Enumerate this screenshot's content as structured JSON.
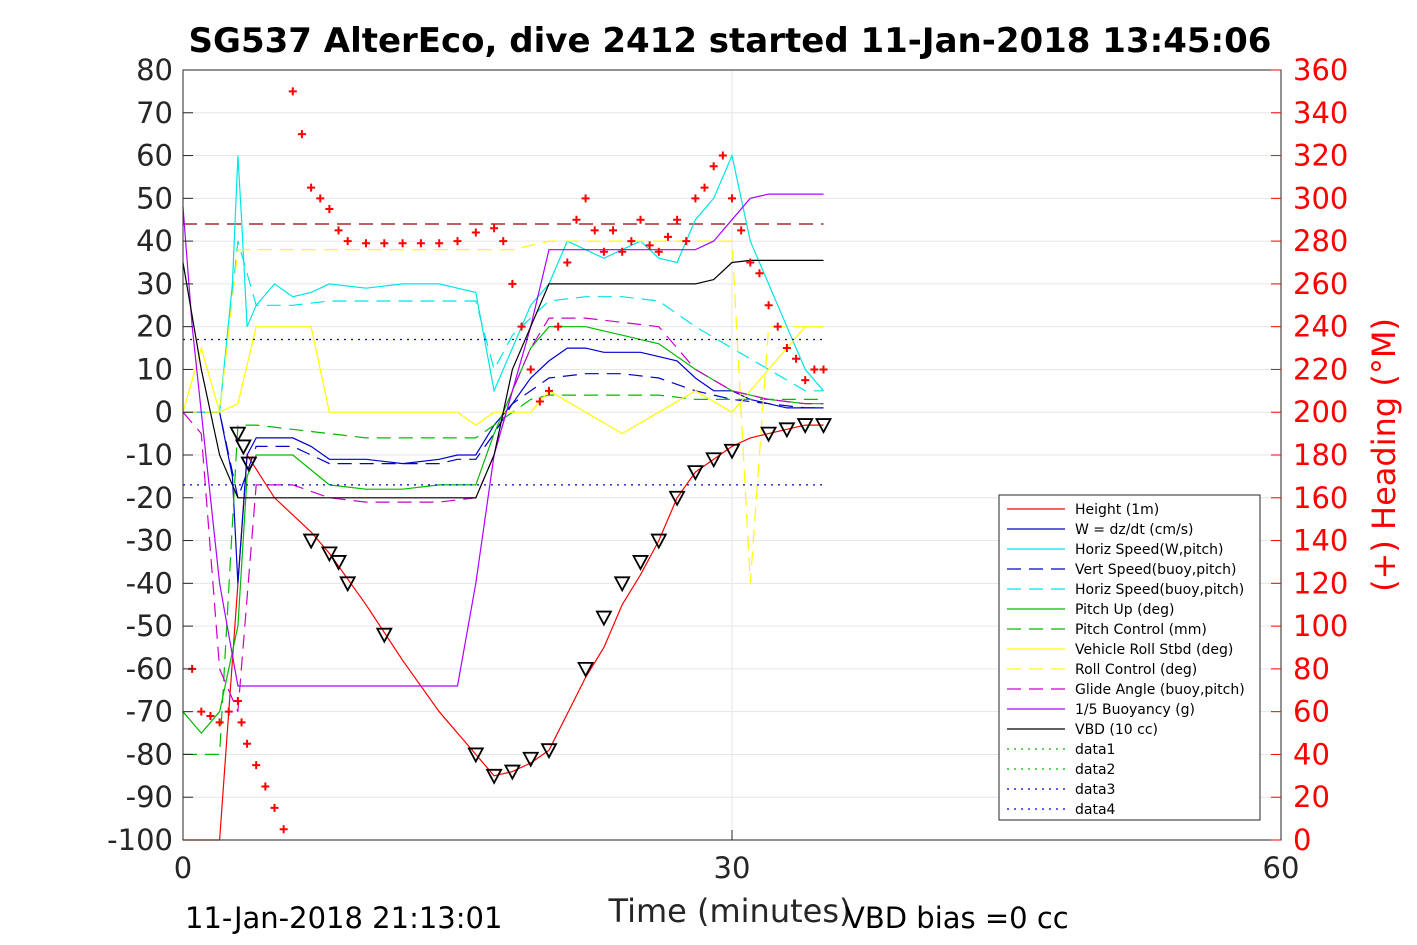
{
  "chart_data": {
    "type": "line",
    "title": "SG537 AlterEco, dive 2412 started 11-Jan-2018 13:45:06",
    "xlabel": "Time (minutes)",
    "ylabel": "",
    "ylabel_right": "(+) Heading (°M)",
    "xlim": [
      0,
      60
    ],
    "ylim": [
      -100,
      80
    ],
    "ylim_right": [
      0,
      360
    ],
    "xticks": [
      "0",
      "30",
      "60"
    ],
    "yticks": [
      "80",
      "70",
      "60",
      "50",
      "40",
      "30",
      "20",
      "10",
      "0",
      "-10",
      "-20",
      "-30",
      "-40",
      "-50",
      "-60",
      "-70",
      "-80",
      "-90",
      "-100"
    ],
    "yticks_right": [
      "360",
      "340",
      "320",
      "300",
      "280",
      "260",
      "240",
      "220",
      "200",
      "180",
      "160",
      "140",
      "120",
      "100",
      "80",
      "60",
      "40",
      "20",
      "0"
    ],
    "footer_left": "11-Jan-2018 21:13:01",
    "footer_right": "VBD bias =0 cc",
    "legend_placement": "lower-right",
    "grid": true,
    "colors": {
      "red": "#ff0000",
      "blue": "#0000cc",
      "cyan": "#00e5e5",
      "green": "#00bb00",
      "yellow": "#ffff00",
      "magenta": "#cc00cc",
      "purple": "#b000ff",
      "black": "#000000"
    },
    "series": [
      {
        "name": "Height (1m)",
        "color": "red",
        "dash": "solid",
        "x": [
          0,
          2,
          3.5,
          5,
          7,
          8,
          10,
          12,
          14,
          16,
          17,
          18,
          19,
          20,
          22,
          23,
          24,
          25,
          26,
          27,
          28,
          29,
          30,
          31,
          32,
          33,
          34,
          35
        ],
        "y": [
          -100,
          -100,
          -10,
          -20,
          -28,
          -33,
          -45,
          -58,
          -70,
          -80,
          -85,
          -84,
          -82,
          -79,
          -62,
          -55,
          -45,
          -38,
          -30,
          -20,
          -14,
          -11,
          -8,
          -6,
          -5,
          -4,
          -3,
          -3
        ]
      },
      {
        "name": "W = dz/dt (cm/s)",
        "color": "blue",
        "dash": "solid",
        "x": [
          0,
          2,
          2.7,
          3,
          3.5,
          4,
          6,
          7,
          8,
          10,
          12,
          14,
          15,
          16,
          17,
          18,
          19,
          20,
          21,
          22,
          23,
          24,
          25,
          26,
          27,
          28,
          29,
          30,
          31,
          32,
          33,
          34,
          35
        ],
        "y": [
          0,
          0,
          -15,
          -40,
          -10,
          -6,
          -6,
          -8,
          -11,
          -11,
          -12,
          -11,
          -10,
          -10,
          -3,
          2,
          8,
          12,
          15,
          15,
          14,
          14,
          14,
          13,
          12,
          8,
          5,
          5,
          3,
          2,
          1,
          1,
          1
        ]
      },
      {
        "name": "Horiz Speed(W,pitch)",
        "color": "cyan",
        "dash": "solid",
        "x": [
          0,
          2,
          2.7,
          3,
          3.2,
          3.5,
          4,
          5,
          6,
          7,
          8,
          10,
          12,
          14,
          15,
          16,
          17,
          18,
          19,
          20,
          21,
          22,
          23,
          24,
          25,
          26,
          27,
          28,
          29,
          30,
          31,
          32,
          33,
          34,
          35
        ],
        "y": [
          0,
          0,
          30,
          60,
          45,
          20,
          25,
          30,
          27,
          28,
          30,
          29,
          30,
          30,
          29,
          28,
          5,
          15,
          25,
          30,
          40,
          38,
          36,
          38,
          40,
          36,
          35,
          45,
          50,
          60,
          40,
          30,
          20,
          10,
          5
        ]
      },
      {
        "name": "Vert Speed(buoy,pitch)",
        "color": "blue",
        "dash": "dashed",
        "x": [
          0,
          2,
          3,
          4,
          6,
          8,
          10,
          12,
          14,
          15,
          16,
          17,
          18,
          19,
          20,
          22,
          24,
          26,
          28,
          30,
          32,
          34,
          35
        ],
        "y": [
          0,
          0,
          -20,
          -8,
          -8,
          -12,
          -12,
          -12,
          -12,
          -11,
          -11,
          -5,
          2,
          5,
          8,
          9,
          9,
          8,
          5,
          3,
          2,
          1,
          1
        ]
      },
      {
        "name": "Horiz Speed(buoy,pitch)",
        "color": "cyan",
        "dash": "dashed",
        "x": [
          0,
          2,
          3,
          4,
          6,
          8,
          10,
          12,
          14,
          15,
          16,
          17,
          18,
          19,
          20,
          22,
          24,
          26,
          28,
          30,
          32,
          34,
          35
        ],
        "y": [
          0,
          0,
          40,
          25,
          25,
          26,
          26,
          26,
          26,
          26,
          26,
          10,
          18,
          22,
          26,
          27,
          27,
          26,
          20,
          15,
          10,
          5,
          5
        ]
      },
      {
        "name": "Pitch Up (deg)",
        "color": "green",
        "dash": "solid",
        "x": [
          0,
          1,
          2,
          3,
          3.5,
          4,
          6,
          8,
          10,
          12,
          14,
          15,
          16,
          17,
          18,
          19,
          20,
          22,
          24,
          26,
          28,
          30,
          32,
          34,
          35
        ],
        "y": [
          -70,
          -75,
          -70,
          -50,
          -15,
          -10,
          -10,
          -17,
          -18,
          -18,
          -17,
          -17,
          -17,
          -5,
          5,
          15,
          20,
          20,
          18,
          16,
          10,
          5,
          3,
          2,
          2
        ]
      },
      {
        "name": "Pitch Control (mm)",
        "color": "green",
        "dash": "dashed",
        "x": [
          0,
          2,
          3,
          4,
          8,
          10,
          12,
          14,
          16,
          17,
          18,
          19,
          20,
          22,
          24,
          26,
          28,
          30,
          32,
          34,
          35
        ],
        "y": [
          -80,
          -80,
          -3,
          -3,
          -5,
          -6,
          -6,
          -6,
          -6,
          -3,
          0,
          3,
          4,
          4,
          4,
          4,
          3,
          3,
          3,
          3,
          3
        ]
      },
      {
        "name": "Vehicle Roll Stbd (deg)",
        "color": "yellow",
        "dash": "solid",
        "x": [
          0,
          1,
          2,
          3,
          4,
          5,
          6,
          7,
          8,
          9,
          10,
          12,
          14,
          15,
          16,
          17,
          18,
          19,
          20,
          22,
          24,
          26,
          28,
          30,
          32,
          34,
          35
        ],
        "y": [
          0,
          15,
          0,
          2,
          20,
          20,
          20,
          20,
          0,
          0,
          0,
          0,
          0,
          0,
          -3,
          0,
          0,
          0,
          5,
          0,
          -5,
          0,
          5,
          0,
          10,
          20,
          20
        ]
      },
      {
        "name": "Roll Control (deg)",
        "color": "yellow",
        "dash": "dashed",
        "x": [
          0,
          2,
          3,
          4,
          6,
          8,
          10,
          12,
          14,
          16,
          18,
          20,
          22,
          24,
          26,
          28,
          30,
          31,
          32,
          34,
          35
        ],
        "y": [
          0,
          0,
          38,
          38,
          38,
          38,
          38,
          38,
          38,
          38,
          38,
          40,
          40,
          40,
          40,
          40,
          40,
          -40,
          20,
          20,
          20
        ]
      },
      {
        "name": "Glide Angle (buoy,pitch)",
        "color": "magenta",
        "dash": "dashed",
        "x": [
          0,
          1,
          2,
          3,
          4,
          6,
          8,
          10,
          12,
          14,
          16,
          17,
          18,
          19,
          20,
          22,
          24,
          26,
          28,
          30,
          32,
          34,
          35
        ],
        "y": [
          0,
          -5,
          -60,
          -70,
          -17,
          -17,
          -20,
          -21,
          -21,
          -21,
          -20,
          -10,
          5,
          15,
          22,
          22,
          21,
          20,
          10,
          5,
          3,
          2,
          2
        ]
      },
      {
        "name": "1/5 Buoyancy (g)",
        "color": "purple",
        "dash": "solid",
        "x": [
          0,
          0.5,
          1,
          2,
          3,
          4,
          6,
          8,
          10,
          12,
          14,
          15,
          16,
          17,
          18,
          19,
          20,
          22,
          24,
          26,
          28,
          29,
          30,
          31,
          32,
          33,
          34,
          35
        ],
        "y": [
          48,
          20,
          0,
          -40,
          -64,
          -64,
          -64,
          -64,
          -64,
          -64,
          -64,
          -64,
          -40,
          -10,
          5,
          20,
          38,
          38,
          38,
          38,
          38,
          40,
          45,
          50,
          51,
          51,
          51,
          51
        ]
      },
      {
        "name": "VBD (10 cc)",
        "color": "black",
        "dash": "solid",
        "x": [
          0,
          1,
          2,
          3,
          4,
          6,
          8,
          10,
          12,
          14,
          16,
          17,
          18,
          19,
          20,
          22,
          24,
          26,
          28,
          29,
          30,
          31,
          32,
          33,
          34,
          35
        ],
        "y": [
          35,
          10,
          -10,
          -20,
          -20,
          -20,
          -20,
          -20,
          -20,
          -20,
          -20,
          -10,
          10,
          20,
          30,
          30,
          30,
          30,
          30,
          31,
          35,
          35.5,
          35.5,
          35.5,
          35.5,
          35.5
        ]
      },
      {
        "name": "data1",
        "color": "green",
        "dash": "dotted",
        "x": [],
        "y": []
      },
      {
        "name": "data2",
        "color": "green",
        "dash": "dotted",
        "x": [],
        "y": []
      },
      {
        "name": "data3",
        "color": "blue",
        "dash": "dotted",
        "x": [
          0,
          35
        ],
        "y": [
          17,
          17
        ]
      },
      {
        "name": "data4",
        "color": "blue",
        "dash": "dotted",
        "x": [
          0,
          35
        ],
        "y": [
          -17,
          -17
        ]
      }
    ],
    "reference_lines": [
      {
        "axis": "right",
        "y": 288,
        "x": [
          0,
          35
        ],
        "color": "#990000",
        "dash": "dashed"
      }
    ],
    "heading_points": {
      "axis": "right",
      "marker": "+",
      "color": "red",
      "x": [
        0.5,
        1,
        1.5,
        2,
        2.5,
        3,
        3.2,
        3.5,
        4,
        4.5,
        5,
        5.5,
        6,
        6.5,
        7,
        7.5,
        8,
        8.5,
        9,
        10,
        11,
        12,
        13,
        14,
        15,
        16,
        17,
        17.5,
        18,
        18.5,
        19,
        19.5,
        20,
        20.5,
        21,
        21.5,
        22,
        22.5,
        23,
        23.5,
        24,
        24.5,
        25,
        25.5,
        26,
        26.5,
        27,
        27.5,
        28,
        28.5,
        29,
        29.5,
        30,
        30.5,
        31,
        31.5,
        32,
        32.5,
        33,
        33.5,
        34,
        34.5,
        35
      ],
      "y": [
        80,
        60,
        58,
        55,
        60,
        65,
        55,
        45,
        35,
        25,
        15,
        5,
        350,
        330,
        305,
        300,
        295,
        285,
        280,
        279,
        279,
        279,
        279,
        279,
        280,
        284,
        286,
        280,
        260,
        240,
        220,
        205,
        210,
        240,
        270,
        290,
        300,
        285,
        275,
        285,
        275,
        280,
        290,
        278,
        275,
        282,
        290,
        280,
        300,
        305,
        315,
        320,
        300,
        285,
        270,
        265,
        250,
        240,
        230,
        225,
        215,
        220,
        220
      ]
    },
    "height_markers": {
      "marker": "triangle",
      "color": "black",
      "x": [
        3,
        3.3,
        3.6,
        7,
        8,
        8.5,
        9,
        11,
        16,
        17,
        18,
        19,
        20,
        22,
        23,
        24,
        25,
        26,
        27,
        28,
        29,
        30,
        32,
        33,
        34,
        35
      ],
      "y": [
        -5,
        -8,
        -12,
        -30,
        -33,
        -35,
        -40,
        -52,
        -80,
        -85,
        -84,
        -81,
        -79,
        -60,
        -48,
        -40,
        -35,
        -30,
        -20,
        -14,
        -11,
        -9,
        -5,
        -4,
        -3,
        -3
      ]
    },
    "legend": [
      "Height (1m)",
      "W = dz/dt (cm/s)",
      "Horiz Speed(W,pitch)",
      "Vert Speed(buoy,pitch)",
      "Horiz Speed(buoy,pitch)",
      "Pitch Up (deg)",
      "Pitch Control (mm)",
      "Vehicle Roll Stbd (deg)",
      "Roll Control (deg)",
      "Glide Angle (buoy,pitch)",
      "1/5 Buoyancy (g)",
      "VBD (10 cc)",
      "data1",
      "data2",
      "data3",
      "data4"
    ]
  }
}
